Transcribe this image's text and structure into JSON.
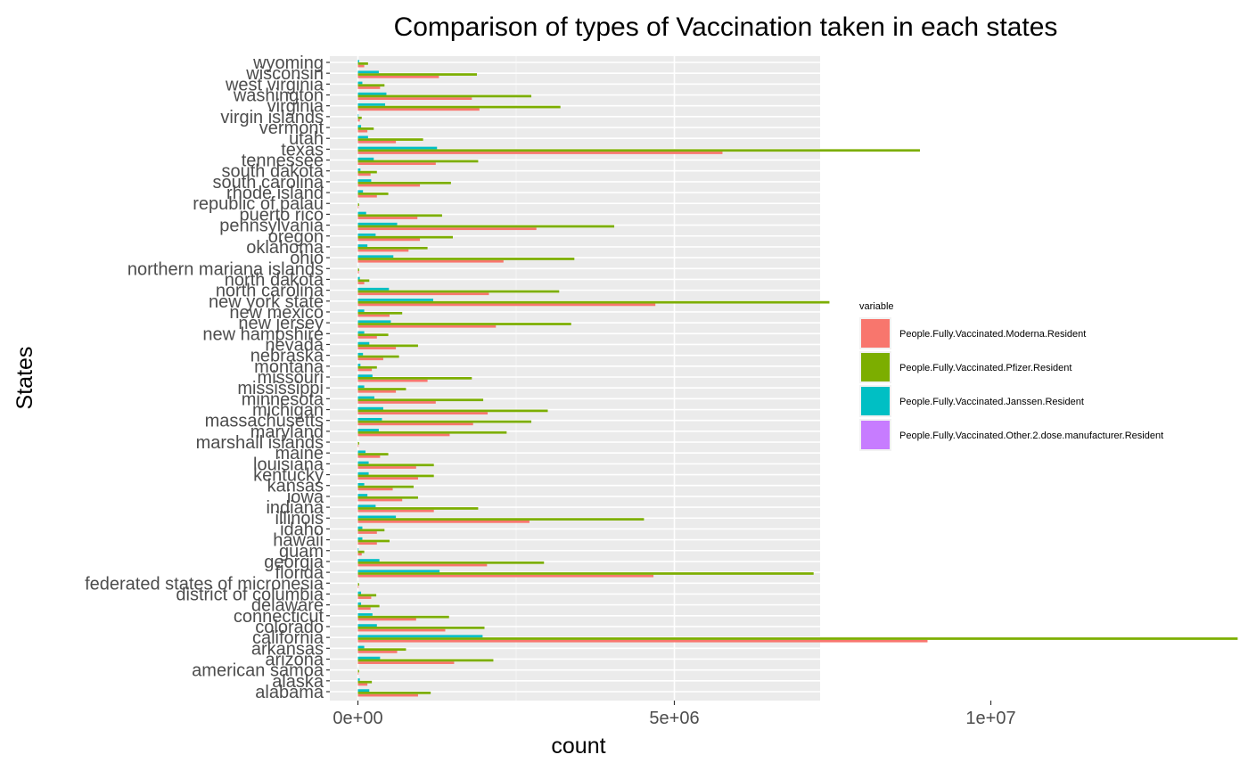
{
  "chart_data": {
    "type": "bar",
    "orientation": "horizontal",
    "title": "Comparison of types of Vaccination taken in each states",
    "xlabel": "count",
    "ylabel": "States",
    "xlim": [
      0,
      14700000
    ],
    "x_ticks": [
      0,
      5000000,
      10000000
    ],
    "x_tick_labels": [
      "0e+00",
      "5e+06",
      "1e+07"
    ],
    "grid": true,
    "legend_position": "right",
    "legend_title": "variable",
    "categories": [
      "alabama",
      "alaska",
      "american samoa",
      "arizona",
      "arkansas",
      "california",
      "colorado",
      "connecticut",
      "delaware",
      "district of columbia",
      "federated states of micronesia",
      "florida",
      "georgia",
      "guam",
      "hawaii",
      "idaho",
      "illinois",
      "indiana",
      "iowa",
      "kansas",
      "kentucky",
      "louisiana",
      "maine",
      "marshall islands",
      "maryland",
      "massachusetts",
      "michigan",
      "minnesota",
      "mississippi",
      "missouri",
      "montana",
      "nebraska",
      "nevada",
      "new hampshire",
      "new jersey",
      "new mexico",
      "new york state",
      "north carolina",
      "north dakota",
      "northern mariana islands",
      "ohio",
      "oklahoma",
      "oregon",
      "pennsylvania",
      "puerto rico",
      "republic of palau",
      "rhode island",
      "south carolina",
      "south dakota",
      "tennessee",
      "texas",
      "utah",
      "vermont",
      "virgin islands",
      "virginia",
      "washington",
      "west virginia",
      "wisconsin",
      "wyoming"
    ],
    "series": [
      {
        "name": "People.Fully.Vaccinated.Moderna.Resident",
        "color": "#F8766D",
        "values": [
          950000,
          150000,
          10000,
          1520000,
          620000,
          9000000,
          1380000,
          920000,
          200000,
          210000,
          10000,
          4670000,
          2040000,
          60000,
          300000,
          300000,
          2710000,
          1200000,
          700000,
          550000,
          950000,
          920000,
          350000,
          10000,
          1450000,
          1820000,
          2050000,
          1230000,
          600000,
          1100000,
          220000,
          400000,
          600000,
          300000,
          2180000,
          500000,
          4700000,
          2070000,
          100000,
          15000,
          2300000,
          800000,
          980000,
          2820000,
          940000,
          10000,
          300000,
          980000,
          200000,
          1230000,
          5760000,
          600000,
          150000,
          30000,
          1920000,
          1800000,
          350000,
          1280000,
          100000
        ]
      },
      {
        "name": "People.Fully.Vaccinated.Pfizer.Resident",
        "color": "#7CAE00",
        "values": [
          1150000,
          220000,
          20000,
          2140000,
          760000,
          13900000,
          2000000,
          1440000,
          340000,
          290000,
          20000,
          7200000,
          2940000,
          100000,
          500000,
          420000,
          4520000,
          1900000,
          950000,
          880000,
          1200000,
          1200000,
          480000,
          20000,
          2350000,
          2740000,
          3000000,
          1980000,
          760000,
          1800000,
          300000,
          650000,
          950000,
          480000,
          3370000,
          700000,
          7450000,
          3180000,
          180000,
          20000,
          3420000,
          1100000,
          1500000,
          4050000,
          1330000,
          20000,
          480000,
          1470000,
          300000,
          1900000,
          8880000,
          1030000,
          250000,
          60000,
          3200000,
          2740000,
          420000,
          1880000,
          160000
        ]
      },
      {
        "name": "People.Fully.Vaccinated.Janssen.Resident",
        "color": "#00BFC4",
        "values": [
          180000,
          30000,
          2000,
          350000,
          100000,
          1970000,
          300000,
          230000,
          50000,
          50000,
          2000,
          1290000,
          340000,
          10000,
          70000,
          70000,
          600000,
          280000,
          150000,
          100000,
          170000,
          170000,
          120000,
          2000,
          330000,
          380000,
          400000,
          260000,
          100000,
          230000,
          40000,
          80000,
          180000,
          100000,
          520000,
          100000,
          1190000,
          490000,
          30000,
          2000,
          560000,
          150000,
          280000,
          620000,
          130000,
          2000,
          80000,
          210000,
          40000,
          250000,
          1250000,
          160000,
          50000,
          10000,
          430000,
          450000,
          70000,
          330000,
          20000
        ]
      },
      {
        "name": "People.Fully.Vaccinated.Other.2.dose.manufacturer.Resident",
        "color": "#C77CFF",
        "values": [
          0,
          0,
          0,
          0,
          0,
          0,
          0,
          0,
          0,
          0,
          0,
          0,
          0,
          0,
          0,
          0,
          0,
          0,
          0,
          0,
          0,
          0,
          0,
          0,
          0,
          0,
          0,
          0,
          0,
          0,
          0,
          0,
          0,
          0,
          0,
          0,
          0,
          0,
          0,
          0,
          0,
          0,
          0,
          0,
          0,
          0,
          0,
          0,
          0,
          0,
          0,
          0,
          0,
          0,
          0,
          0,
          0,
          0,
          0
        ]
      }
    ]
  }
}
